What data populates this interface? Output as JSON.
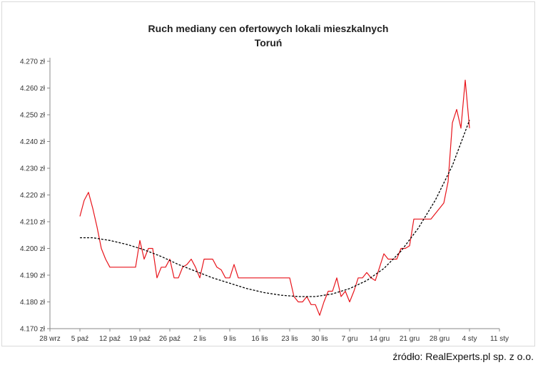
{
  "chart_data": {
    "type": "line",
    "title": "Ruch mediany cen ofertowych lokali mieszkalnych",
    "subtitle": "Toruń",
    "xlabel": "",
    "ylabel": "",
    "ylim": [
      4170,
      4270
    ],
    "y_ticks": [
      "4.170 zł",
      "4.180 zł",
      "4.190 zł",
      "4.200 zł",
      "4.210 zł",
      "4.220 zł",
      "4.230 zł",
      "4.240 zł",
      "4.250 zł",
      "4.260 zł",
      "4.270 zł"
    ],
    "x_ticks": [
      "28 wrz",
      "5 paź",
      "12 paź",
      "19 paź",
      "26 paź",
      "2 lis",
      "9 lis",
      "16 lis",
      "23 lis",
      "30 lis",
      "7 gru",
      "14 gru",
      "21 gru",
      "28 gru",
      "4 sty",
      "11 sty"
    ],
    "xlim_days": [
      0,
      105
    ],
    "series": [
      {
        "style": "solid",
        "color": "#e8141b",
        "points": [
          [
            7,
            4212
          ],
          [
            8,
            4218
          ],
          [
            9,
            4221
          ],
          [
            10,
            4215
          ],
          [
            11,
            4208
          ],
          [
            12,
            4200
          ],
          [
            13,
            4196
          ],
          [
            14,
            4193
          ],
          [
            15,
            4193
          ],
          [
            16,
            4193
          ],
          [
            17,
            4193
          ],
          [
            18,
            4193
          ],
          [
            19,
            4193
          ],
          [
            20,
            4193
          ],
          [
            21,
            4203
          ],
          [
            22,
            4196
          ],
          [
            23,
            4200
          ],
          [
            24,
            4200
          ],
          [
            25,
            4189
          ],
          [
            26,
            4193
          ],
          [
            27,
            4193
          ],
          [
            28,
            4196
          ],
          [
            29,
            4189
          ],
          [
            30,
            4189
          ],
          [
            31,
            4193
          ],
          [
            32,
            4194
          ],
          [
            33,
            4196
          ],
          [
            34,
            4193
          ],
          [
            35,
            4189
          ],
          [
            36,
            4196
          ],
          [
            37,
            4196
          ],
          [
            38,
            4196
          ],
          [
            39,
            4193
          ],
          [
            40,
            4192
          ],
          [
            41,
            4189
          ],
          [
            42,
            4189
          ],
          [
            43,
            4194
          ],
          [
            44,
            4189
          ],
          [
            45,
            4189
          ],
          [
            46,
            4189
          ],
          [
            47,
            4189
          ],
          [
            48,
            4189
          ],
          [
            49,
            4189
          ],
          [
            50,
            4189
          ],
          [
            51,
            4189
          ],
          [
            52,
            4189
          ],
          [
            53,
            4189
          ],
          [
            54,
            4189
          ],
          [
            55,
            4189
          ],
          [
            56,
            4189
          ],
          [
            57,
            4182
          ],
          [
            58,
            4180
          ],
          [
            59,
            4180
          ],
          [
            60,
            4182
          ],
          [
            61,
            4179
          ],
          [
            62,
            4179
          ],
          [
            63,
            4175
          ],
          [
            64,
            4180
          ],
          [
            65,
            4184
          ],
          [
            66,
            4184
          ],
          [
            67,
            4189
          ],
          [
            68,
            4182
          ],
          [
            69,
            4184
          ],
          [
            70,
            4180
          ],
          [
            71,
            4184
          ],
          [
            72,
            4189
          ],
          [
            73,
            4189
          ],
          [
            74,
            4191
          ],
          [
            75,
            4189
          ],
          [
            76,
            4188
          ],
          [
            77,
            4193
          ],
          [
            78,
            4198
          ],
          [
            79,
            4196
          ],
          [
            80,
            4196
          ],
          [
            81,
            4196
          ],
          [
            82,
            4200
          ],
          [
            83,
            4200
          ],
          [
            84,
            4201
          ],
          [
            85,
            4211
          ],
          [
            86,
            4211
          ],
          [
            87,
            4211
          ],
          [
            88,
            4211
          ],
          [
            89,
            4211
          ],
          [
            90,
            4213
          ],
          [
            91,
            4215
          ],
          [
            92,
            4217
          ],
          [
            93,
            4225
          ],
          [
            94,
            4247
          ],
          [
            95,
            4252
          ],
          [
            96,
            4245
          ],
          [
            97,
            4263
          ],
          [
            98,
            4245
          ]
        ]
      },
      {
        "style": "dashed",
        "color": "#000000",
        "points": [
          [
            7,
            4204
          ],
          [
            10,
            4204
          ],
          [
            14,
            4203
          ],
          [
            18,
            4201.5
          ],
          [
            22,
            4199.5
          ],
          [
            26,
            4197
          ],
          [
            30,
            4194
          ],
          [
            34,
            4191.5
          ],
          [
            38,
            4189
          ],
          [
            42,
            4187
          ],
          [
            46,
            4185
          ],
          [
            50,
            4183.5
          ],
          [
            54,
            4182.5
          ],
          [
            58,
            4182
          ],
          [
            62,
            4182
          ],
          [
            66,
            4183
          ],
          [
            70,
            4185
          ],
          [
            74,
            4188
          ],
          [
            78,
            4192.5
          ],
          [
            82,
            4199
          ],
          [
            86,
            4207.5
          ],
          [
            90,
            4218
          ],
          [
            94,
            4231
          ],
          [
            98,
            4248
          ]
        ]
      }
    ]
  },
  "source": "źródło: RealExperts.pl sp. z o.o."
}
